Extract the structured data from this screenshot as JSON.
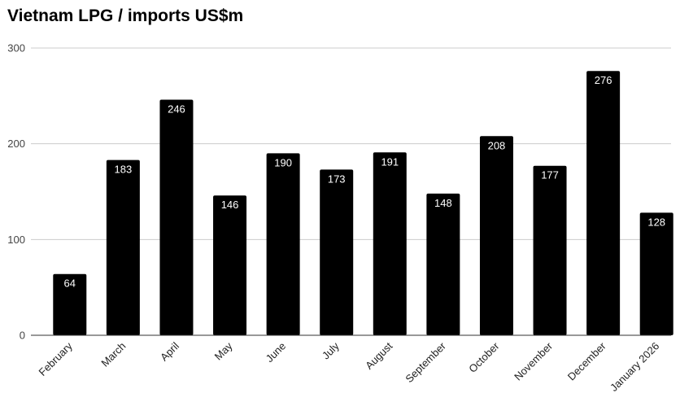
{
  "chart_data": {
    "type": "bar",
    "title": "Vietnam LPG / imports US$m",
    "xlabel": "",
    "ylabel": "",
    "categories": [
      "February",
      "March",
      "April",
      "May",
      "June",
      "July",
      "August",
      "September",
      "October",
      "November",
      "December",
      "January 2026"
    ],
    "values": [
      64,
      183,
      246,
      146,
      190,
      173,
      191,
      148,
      208,
      177,
      276,
      128
    ],
    "ylim": [
      0,
      300
    ],
    "yticks": [
      0,
      100,
      200,
      300
    ],
    "data_labels": true,
    "grid": true,
    "legend": "none",
    "colors": {
      "bar": "#000000",
      "grid": "#cccccc",
      "axis": "#333333",
      "label": "#ffffff"
    }
  }
}
